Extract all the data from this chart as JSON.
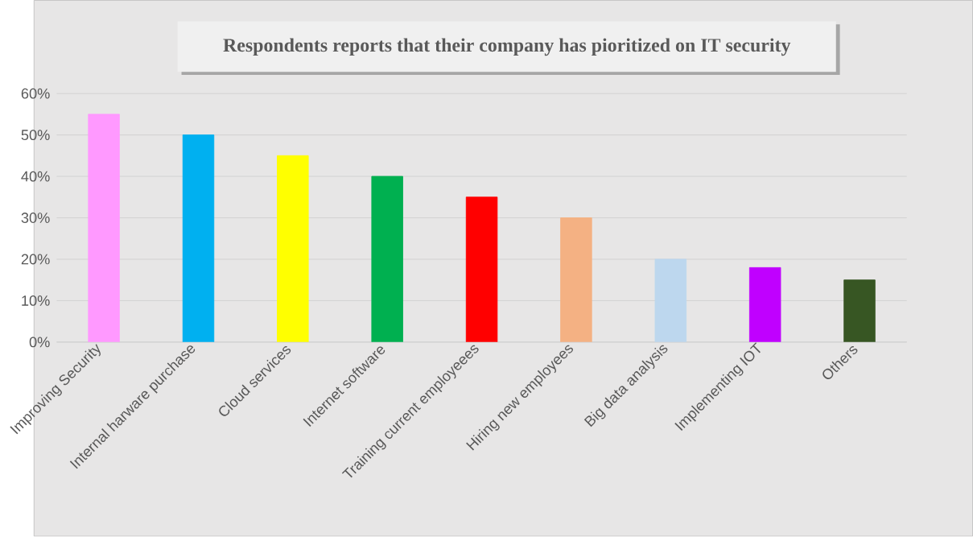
{
  "chart_data": {
    "type": "bar",
    "title": "Respondents reports that their company has pioritized on IT security",
    "categories": [
      "Improving Security",
      "Internal harware purchase",
      "Cloud services",
      "Internet software",
      "Training current employeees",
      "Hiring new employees",
      "Big data analysis",
      "Implementing IOT",
      "Others"
    ],
    "values": [
      55,
      50,
      45,
      40,
      35,
      30,
      20,
      18,
      15
    ],
    "colors": [
      "#ff99ff",
      "#00b0f0",
      "#ffff00",
      "#00b050",
      "#ff0000",
      "#f4b183",
      "#bdd7ee",
      "#c000ff",
      "#375623"
    ],
    "ylim": [
      0,
      60
    ],
    "yticks": [
      {
        "value": 0,
        "label": "0%"
      },
      {
        "value": 10,
        "label": "10%"
      },
      {
        "value": 20,
        "label": "20%"
      },
      {
        "value": 30,
        "label": "30%"
      },
      {
        "value": 40,
        "label": "40%"
      },
      {
        "value": 50,
        "label": "50%"
      },
      {
        "value": 60,
        "label": "60%"
      }
    ],
    "grid": "y"
  }
}
